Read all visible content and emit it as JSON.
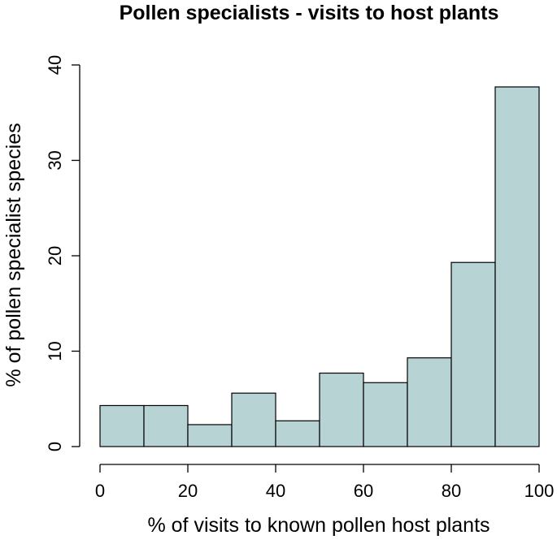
{
  "chart_data": {
    "type": "bar",
    "title": "Pollen specialists - visits to host plants",
    "xlabel": "% of visits to known pollen host plants",
    "ylabel": "% of pollen specialist species",
    "bins": [
      {
        "from": 0,
        "to": 10,
        "value": 4.3
      },
      {
        "from": 10,
        "to": 20,
        "value": 4.3
      },
      {
        "from": 20,
        "to": 30,
        "value": 2.3
      },
      {
        "from": 30,
        "to": 40,
        "value": 5.6
      },
      {
        "from": 40,
        "to": 50,
        "value": 2.7
      },
      {
        "from": 50,
        "to": 60,
        "value": 7.7
      },
      {
        "from": 60,
        "to": 70,
        "value": 6.7
      },
      {
        "from": 70,
        "to": 80,
        "value": 9.3
      },
      {
        "from": 80,
        "to": 90,
        "value": 19.3
      },
      {
        "from": 90,
        "to": 100,
        "value": 37.7
      }
    ],
    "xlim": [
      0,
      100
    ],
    "ylim": [
      0,
      40
    ],
    "x_ticks": [
      0,
      20,
      40,
      60,
      80,
      100
    ],
    "y_ticks": [
      0,
      10,
      20,
      30,
      40
    ],
    "bar_color": "#b8d3d4",
    "bar_edge_color": "#000000",
    "grid": false,
    "legend": "none"
  }
}
